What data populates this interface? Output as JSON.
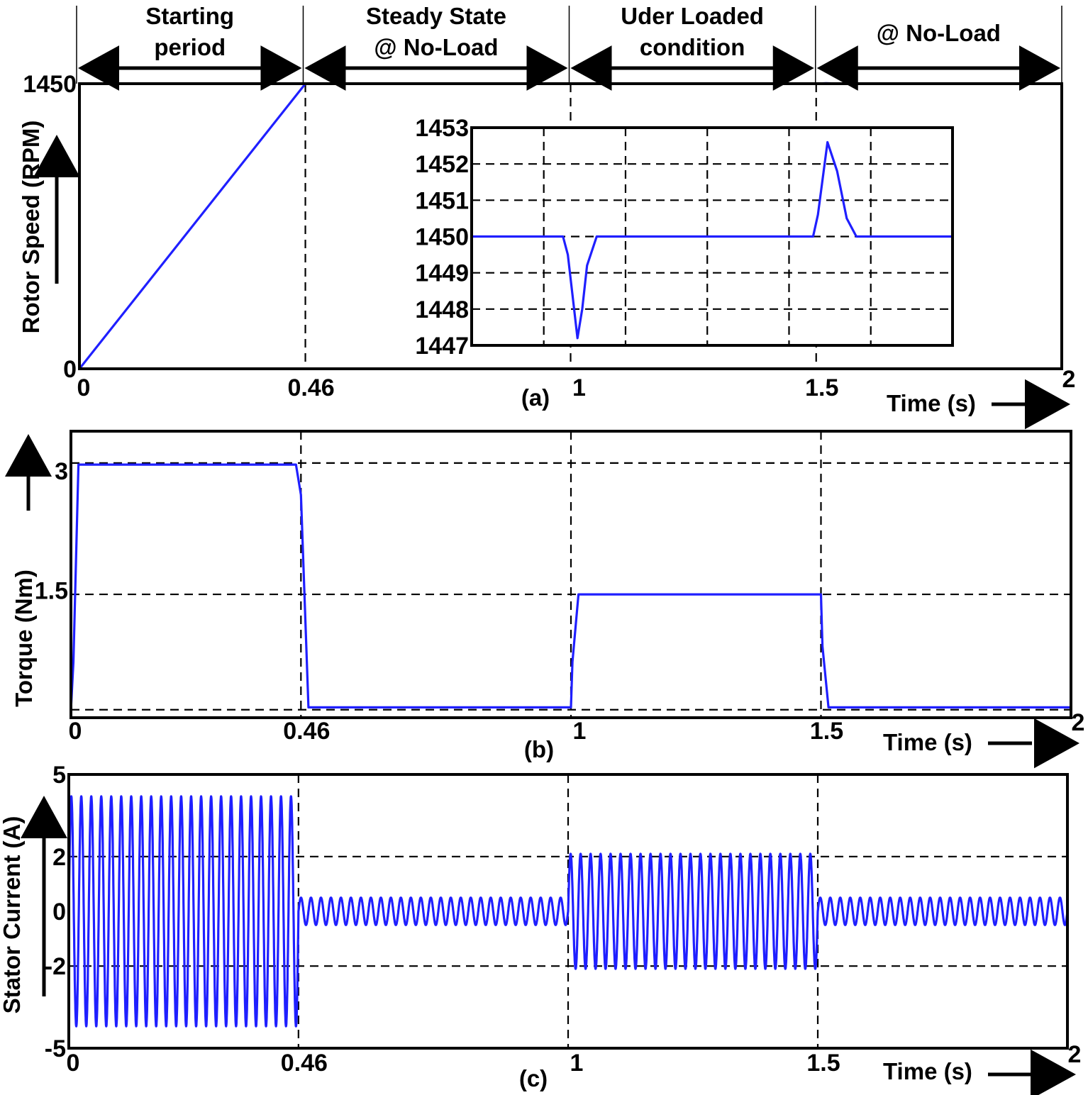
{
  "phases": [
    {
      "label_lines": [
        "Starting",
        "period"
      ],
      "x0": 0,
      "x1": 0.46
    },
    {
      "label_lines": [
        "Steady State",
        "@ No-Load"
      ],
      "x0": 0.46,
      "x1": 1.0
    },
    {
      "label_lines": [
        "Uder Loaded",
        "condition"
      ],
      "x0": 1.0,
      "x1": 1.5
    },
    {
      "label_lines": [
        "@ No-Load"
      ],
      "x0": 1.5,
      "x1": 2.0
    }
  ],
  "chart_data": [
    {
      "type": "line",
      "panel": "(a)",
      "ylabel": "Rotor Speed (RPM)",
      "xlabel": "Time (s)",
      "xlim": [
        0,
        2
      ],
      "ylim": [
        0,
        1450
      ],
      "xticks": [
        0,
        0.46,
        1,
        1.5,
        2
      ],
      "xtick_labels": [
        "0",
        "0.46",
        "1",
        "1.5",
        "2"
      ],
      "yticks": [
        0,
        1450
      ],
      "ytick_labels": [
        "0",
        "1450"
      ],
      "grid": "dashed",
      "series": [
        {
          "x": [
            0,
            0.46,
            1.0,
            1.5,
            1.52,
            1.55,
            2.0
          ],
          "values": [
            0,
            1450,
            1450,
            1450,
            1452.6,
            1450,
            1450
          ]
        }
      ],
      "inset": {
        "xlim": [
          0.46,
          1.46
        ],
        "ylim": [
          1447,
          1453
        ],
        "yticks": [
          1447,
          1448,
          1449,
          1450,
          1451,
          1452,
          1453
        ],
        "ytick_labels": [
          "1447",
          "1448",
          "1449",
          "1450",
          "1451",
          "1452",
          "1453"
        ],
        "series": [
          {
            "x": [
              0.46,
              0.65,
              0.66,
              0.68,
              0.69,
              0.7,
              0.72,
              1.17,
              1.18,
              1.2,
              1.22,
              1.24,
              1.26,
              1.46
            ],
            "values": [
              1450,
              1450,
              1449.5,
              1447.2,
              1448.0,
              1449.2,
              1450,
              1450,
              1450.6,
              1452.6,
              1451.8,
              1450.5,
              1450,
              1450
            ]
          }
        ]
      }
    },
    {
      "type": "line",
      "panel": "(b)",
      "ylabel": "Torque (Nm)",
      "xlabel": "Time (s)",
      "xlim": [
        0,
        2
      ],
      "ylim": [
        -0.1,
        3.5
      ],
      "xticks": [
        0,
        0.46,
        1,
        1.5,
        2
      ],
      "xtick_labels": [
        "0",
        "0.46",
        "1",
        "1.5",
        "2"
      ],
      "yticks": [
        1.5,
        3
      ],
      "ytick_labels": [
        "1.5",
        "3"
      ],
      "grid": "dashed",
      "series": [
        {
          "x": [
            0,
            0.005,
            0.015,
            0.45,
            0.46,
            0.475,
            1.0,
            1.003,
            1.015,
            1.5,
            1.503,
            1.515,
            2.0
          ],
          "values": [
            0,
            0.6,
            3.08,
            3.08,
            2.7,
            0.03,
            0.03,
            0.6,
            1.45,
            1.45,
            0.8,
            0.03,
            0.03
          ]
        }
      ]
    },
    {
      "type": "line",
      "panel": "(c)",
      "ylabel": "Stator Current (A)",
      "xlabel": "Time (s)",
      "xlim": [
        0,
        2
      ],
      "ylim": [
        -5,
        5
      ],
      "xticks": [
        0,
        0.46,
        1,
        1.5,
        2
      ],
      "xtick_labels": [
        "0",
        "0.46",
        "1",
        "1.5",
        "2"
      ],
      "yticks": [
        -5,
        -2,
        0,
        2,
        5
      ],
      "ytick_labels": [
        "-5",
        "-2",
        "0",
        "2",
        "5"
      ],
      "grid": "dashed",
      "series": [
        {
          "x": [
            0,
            0.46,
            1.0,
            1.5,
            2.0
          ],
          "amplitude": [
            4.2,
            0.5,
            2.1,
            0.5,
            0.5
          ],
          "frequency_hz": 50
        }
      ]
    }
  ]
}
